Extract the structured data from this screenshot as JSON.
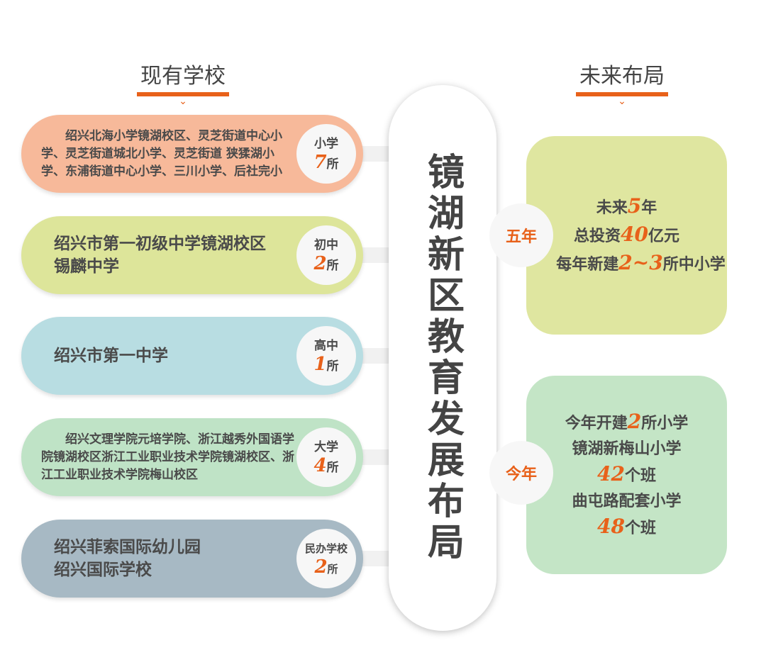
{
  "headers": {
    "left": "现有学校",
    "right": "未来布局"
  },
  "center_title": "镜湖新区教育发展布局",
  "colors": {
    "accent": "#e8611a",
    "primary": "#f7b99a",
    "junior": "#dde59a",
    "senior": "#b8dde2",
    "university": "#bfe3c6",
    "private": "#a7b9c4"
  },
  "left": [
    {
      "schools": "绍兴北海小学镜湖校区、灵芝街道中心小学、灵芝街道城北小学、灵芝街道 狭猱湖小学、东浦街道中心小学、三川小学、后社完小",
      "type": "小学",
      "count": "7",
      "unit": "所"
    },
    {
      "schools_lines": [
        "绍兴市第一初级中学镜湖校区",
        "锡麟中学"
      ],
      "type": "初中",
      "count": "2",
      "unit": "所"
    },
    {
      "schools_lines": [
        "绍兴市第一中学"
      ],
      "type": "高中",
      "count": "1",
      "unit": "所"
    },
    {
      "schools": "绍兴文理学院元培学院、浙江越秀外国语学院镜湖校区浙江工业职业技术学院镜湖校区、浙江工业职业技术学院梅山校区",
      "type": "大学",
      "count": "4",
      "unit": "所"
    },
    {
      "schools_lines": [
        "绍兴菲索国际幼儿园",
        "绍兴国际学校"
      ],
      "type": "民办学校",
      "count": "2",
      "unit": "所"
    }
  ],
  "right": [
    {
      "label": "五年",
      "lines": [
        [
          "未来",
          "5",
          "年"
        ],
        [
          "总投资",
          "40",
          "亿元"
        ],
        [
          "每年新建",
          "2~3",
          "所中小学"
        ]
      ]
    },
    {
      "label": "今年",
      "lines": [
        [
          "今年开建",
          "2",
          "所小学"
        ],
        [
          "镜湖新梅山小学",
          "",
          ""
        ],
        [
          "",
          "42",
          "个班"
        ],
        [
          "曲屯路配套小学",
          "",
          ""
        ],
        [
          "",
          "48",
          "个班"
        ]
      ]
    }
  ]
}
